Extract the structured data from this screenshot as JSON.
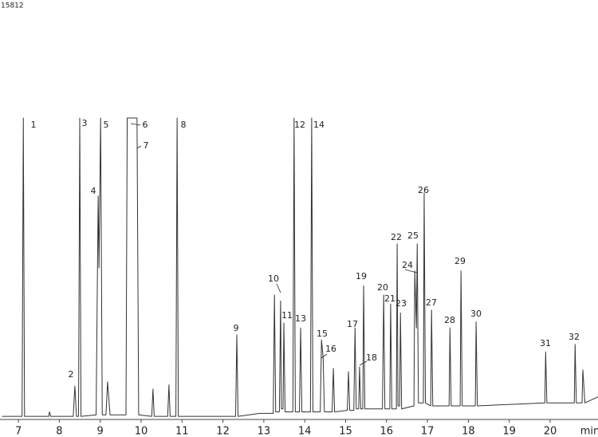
{
  "chart_data": {
    "type": "line",
    "corner_text": "15812",
    "x_label": "min",
    "xlim": [
      6.55,
      21.17
    ],
    "xticks": [
      7,
      8,
      9,
      10,
      11,
      12,
      13,
      14,
      15,
      16,
      17,
      18,
      19,
      20
    ],
    "ylim": [
      0,
      100
    ],
    "color": "#333333",
    "x": [
      6.6,
      7.09,
      7.12,
      7.15,
      7.74,
      7.76,
      7.79,
      8.34,
      8.38,
      8.42,
      8.47,
      8.5,
      8.53,
      8.9,
      8.95,
      8.97,
      9.01,
      9.05,
      9.14,
      9.18,
      9.24,
      9.63,
      9.66,
      9.86,
      9.9,
      9.94,
      10.26,
      10.29,
      10.32,
      10.65,
      10.68,
      10.71,
      10.85,
      10.88,
      10.91,
      12.31,
      12.34,
      12.37,
      12.9,
      13.23,
      13.26,
      13.29,
      13.38,
      13.41,
      13.43,
      13.47,
      13.49,
      13.52,
      13.71,
      13.74,
      13.77,
      13.87,
      13.9,
      13.93,
      14.14,
      14.17,
      14.2,
      14.38,
      14.41,
      14.45,
      14.48,
      14.67,
      14.7,
      14.73,
      15.04,
      15.07,
      15.1,
      15.2,
      15.23,
      15.26,
      15.32,
      15.34,
      15.37,
      15.42,
      15.44,
      15.47,
      15.9,
      15.93,
      15.96,
      16.08,
      16.1,
      16.13,
      16.24,
      16.26,
      16.28,
      16.32,
      16.34,
      16.37,
      16.67,
      16.69,
      16.73,
      16.75,
      16.78,
      16.9,
      16.92,
      16.95,
      17.08,
      17.1,
      17.13,
      17.53,
      17.55,
      17.58,
      17.8,
      17.82,
      17.85,
      18.17,
      18.19,
      18.22,
      19.87,
      19.89,
      19.92,
      20.59,
      20.61,
      20.64,
      20.78,
      20.8,
      20.85,
      21.17
    ],
    "values": [
      0.5,
      0.5,
      100,
      0.5,
      0.5,
      2,
      0.5,
      0.5,
      10.6,
      0.5,
      0.5,
      100,
      0.5,
      1,
      74,
      50,
      100,
      1,
      1,
      12,
      1,
      1,
      100,
      100,
      100,
      1,
      0.5,
      9.6,
      0.5,
      0.5,
      11,
      0.5,
      0.5,
      100,
      0.5,
      0.5,
      27.7,
      0.5,
      1.5,
      1.5,
      41,
      2,
      2,
      39,
      3,
      3,
      31.6,
      2,
      2,
      100,
      2,
      2,
      30,
      2,
      2,
      100,
      2,
      2,
      26,
      20,
      2,
      2,
      16.5,
      2,
      2.5,
      15.4,
      2.5,
      2.5,
      30,
      3,
      3,
      17,
      3,
      3,
      44,
      3,
      3,
      41,
      3,
      3,
      38,
      3,
      3,
      58,
      4,
      4,
      35,
      3,
      4,
      49,
      30,
      58,
      5,
      5,
      75,
      5,
      4,
      36,
      4,
      4,
      30,
      4,
      4,
      49,
      4,
      4,
      32,
      4,
      5,
      22,
      5,
      5,
      24.5,
      5,
      5,
      16,
      5,
      7
    ],
    "peak_labels": [
      "1",
      "2",
      "3",
      "4",
      "5",
      "6",
      "7",
      "8",
      "9",
      "10",
      "11",
      "12",
      "13",
      "14",
      "15",
      "16",
      "17",
      "18",
      "19",
      "20",
      "21",
      "22",
      "23",
      "24",
      "25",
      "26",
      "27",
      "28",
      "29",
      "30",
      "31",
      "32"
    ]
  }
}
